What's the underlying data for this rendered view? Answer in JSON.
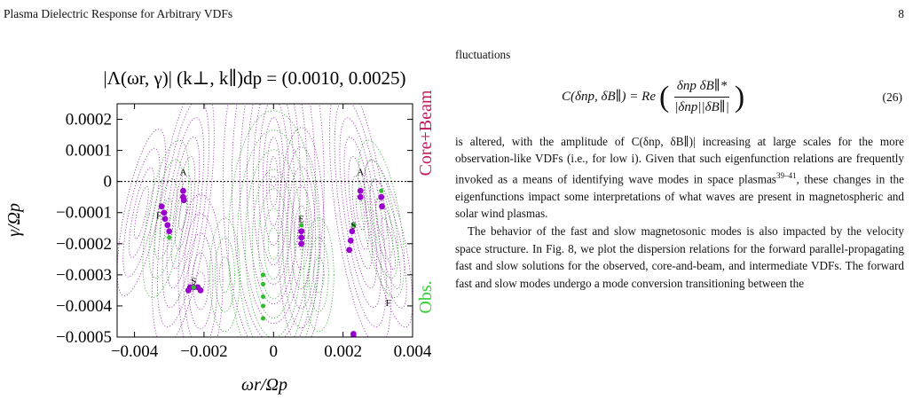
{
  "header": {
    "running_title": "Plasma Dielectric Response for Arbitrary VDFs",
    "page_number": "8"
  },
  "chart_data": {
    "type": "scatter",
    "title": "|Λ(ωr, γ)|  (k⊥, k∥)dp = (0.0010, 0.0025)",
    "xlabel": "ωr/Ωp",
    "ylabel": "γ/Ωp",
    "xlim": [
      -0.0045,
      0.004
    ],
    "ylim": [
      -0.0005,
      0.00025
    ],
    "xticks": [
      -0.004,
      -0.002,
      0,
      0.002,
      0.004
    ],
    "xtick_labels": [
      "−0.004",
      "−0.002",
      "0",
      "0.002",
      "0.004"
    ],
    "yticks": [
      0.0002,
      0.0001,
      0,
      -0.0001,
      -0.0002,
      -0.0003,
      -0.0004,
      -0.0005
    ],
    "ytick_labels": [
      "0.0002",
      "0.0001",
      "0",
      "−0.0001",
      "−0.0002",
      "−0.0003",
      "−0.0004",
      "−0.0005"
    ],
    "zero_line": true,
    "contours": "dotted purple (Core+Beam) and green (Obs.) contours of |Λ|",
    "side_labels": [
      {
        "text": "Core+Beam",
        "color": "#c0185e"
      },
      {
        "text": "Obs.",
        "color": "#33cc33"
      }
    ],
    "colors": {
      "core_beam": "#9900cc",
      "obs": "#33bb33"
    },
    "mode_labels": [
      {
        "text": "A",
        "x": -0.0026,
        "y": 2e-05
      },
      {
        "text": "F",
        "x": -0.0033,
        "y": -0.00012
      },
      {
        "text": "S",
        "x": -0.0023,
        "y": -0.00033
      },
      {
        "text": "E",
        "x": 0.0008,
        "y": -0.00013
      },
      {
        "text": "S",
        "x": 0.0023,
        "y": -0.00015
      },
      {
        "text": "A",
        "x": 0.0025,
        "y": 2e-05
      },
      {
        "text": "F",
        "x": 0.0033,
        "y": -0.0004
      }
    ],
    "series": [
      {
        "name": "Core+Beam",
        "points": [
          [
            -0.0026,
            -3e-05
          ],
          [
            -0.0026,
            -5e-05
          ],
          [
            -0.00258,
            -6e-05
          ],
          [
            -0.00322,
            -8e-05
          ],
          [
            -0.00315,
            -0.0001
          ],
          [
            -0.00312,
            -0.00012
          ],
          [
            -0.00305,
            -0.00014
          ],
          [
            -0.003,
            -0.00016
          ],
          [
            -0.0024,
            -0.00034
          ],
          [
            -0.0023,
            -0.00034
          ],
          [
            -0.00218,
            -0.00034
          ],
          [
            -0.0021,
            -0.00035
          ],
          [
            -0.00245,
            -0.00035
          ],
          [
            0.0008,
            -0.00016
          ],
          [
            0.0008,
            -0.00018
          ],
          [
            0.0008,
            -0.0002
          ],
          [
            0.00218,
            -0.00022
          ],
          [
            0.00222,
            -0.00019
          ],
          [
            0.00226,
            -0.00016
          ],
          [
            0.0025,
            -3e-05
          ],
          [
            0.0025,
            -5e-05
          ],
          [
            0.0031,
            -5e-05
          ],
          [
            0.00312,
            -8e-05
          ],
          [
            0.0023,
            -0.00049
          ],
          [
            0.0023,
            -0.0005
          ]
        ]
      },
      {
        "name": "Obs.",
        "points": [
          [
            -0.003,
            -0.00018
          ],
          [
            -0.0023,
            -0.00034
          ],
          [
            -0.0003,
            -0.0003
          ],
          [
            -0.0003,
            -0.00033
          ],
          [
            -0.0003,
            -0.00037
          ],
          [
            -0.0003,
            -0.0004
          ],
          [
            -0.0003,
            -0.00044
          ],
          [
            0.0008,
            -0.00014
          ],
          [
            0.0023,
            -0.00014
          ],
          [
            0.0031,
            -3e-05
          ]
        ]
      }
    ]
  },
  "body": {
    "lead": "fluctuations",
    "equation": {
      "lhs": "C(δnp, δB∥) = Re",
      "numerator": "δnp δB∥*",
      "denominator": "|δnp||δB∥|",
      "number": "(26)"
    },
    "para1": "is altered, with the amplitude of C(δnp, δB∥)| increasing at large scales for the more observation-like VDFs (i.e., for low i). Given that such eigenfunction relations are frequently invoked as a means of identifying wave modes in space plasmas",
    "para1_refs": "39–41",
    "para1_tail": ", these changes in the eigenfunctions impact some interpretations of what waves are present in magnetospheric and solar wind plasmas.",
    "para2": "The behavior of the fast and slow magnetosonic modes is also impacted by the velocity space structure. In Fig. 8, we plot the dispersion relations for the forward parallel-propagating fast and slow solutions for the observed, core-and-beam, and intermediate VDFs. The forward fast and slow modes undergo a mode conversion transitioning between the"
  }
}
